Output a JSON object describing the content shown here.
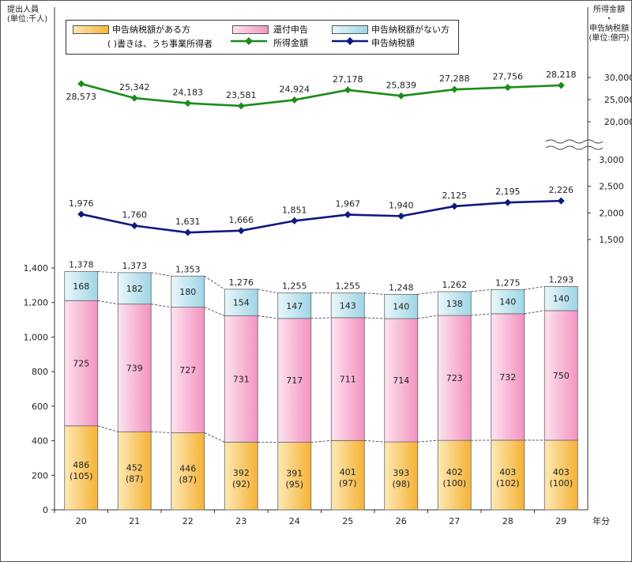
{
  "chart_data": {
    "type": "bar+line",
    "left_axis_title": "提出人員\n(単位:千人)",
    "right_axis_title": "所得金額\n・\n申告納税額\n(単位:億円)",
    "x_unit_label": "年分",
    "categories": [
      "20",
      "21",
      "22",
      "23",
      "24",
      "25",
      "26",
      "27",
      "28",
      "29"
    ],
    "bars": {
      "ylim": [
        0,
        1400
      ],
      "yticks": [
        "0",
        "200",
        "400",
        "600",
        "800",
        "1,000",
        "1,200",
        "1,400"
      ],
      "series": [
        {
          "name": "申告納税額がある方",
          "color": "#f8c24e",
          "values": [
            486,
            452,
            446,
            392,
            391,
            401,
            393,
            402,
            403,
            403
          ],
          "labels": [
            "486",
            "452",
            "446",
            "392",
            "391",
            "401",
            "393",
            "402",
            "403",
            "403"
          ],
          "sublabels": [
            "(105)",
            "(87)",
            "(87)",
            "(92)",
            "(95)",
            "(97)",
            "(98)",
            "(100)",
            "(102)",
            "(100)"
          ]
        },
        {
          "name": "還付申告",
          "color": "#f8b8d8",
          "values": [
            725,
            739,
            727,
            731,
            717,
            711,
            714,
            723,
            732,
            750
          ],
          "labels": [
            "725",
            "739",
            "727",
            "731",
            "717",
            "711",
            "714",
            "723",
            "732",
            "750"
          ]
        },
        {
          "name": "申告納税額がない方",
          "color": "#bfe6ef",
          "values": [
            168,
            182,
            180,
            154,
            147,
            143,
            140,
            138,
            140,
            140
          ],
          "labels": [
            "168",
            "182",
            "180",
            "154",
            "147",
            "143",
            "140",
            "138",
            "140",
            "140"
          ]
        }
      ],
      "totals": [
        "1,378",
        "1,373",
        "1,353",
        "1,276",
        "1,255",
        "1,255",
        "1,248",
        "1,262",
        "1,275",
        "1,293"
      ]
    },
    "lines": [
      {
        "name": "所得金額",
        "color": "#1a8c1a",
        "marker": "diamond",
        "values": [
          28573,
          25342,
          24183,
          23581,
          24924,
          27178,
          25839,
          27288,
          27756,
          28218
        ],
        "labels": [
          "28,573",
          "25,342",
          "24,183",
          "23,581",
          "24,924",
          "27,178",
          "25,839",
          "27,288",
          "27,756",
          "28,218"
        ],
        "yticks": [
          "20,000",
          "25,000",
          "30,000"
        ]
      },
      {
        "name": "申告納税額",
        "color": "#101880",
        "marker": "diamond",
        "values": [
          1976,
          1760,
          1631,
          1666,
          1851,
          1967,
          1940,
          2125,
          2195,
          2226
        ],
        "labels": [
          "1,976",
          "1,760",
          "1,631",
          "1,666",
          "1,851",
          "1,967",
          "1,940",
          "2,125",
          "2,195",
          "2,226"
        ],
        "yticks": [
          "1,500",
          "2,000",
          "2,500",
          "3,000"
        ]
      }
    ],
    "legend": {
      "note": "(  )書きは、うち事業所得者",
      "items": [
        "申告納税額がある方",
        "還付申告",
        "申告納税額がない方",
        "所得金額",
        "申告納税額"
      ]
    }
  }
}
